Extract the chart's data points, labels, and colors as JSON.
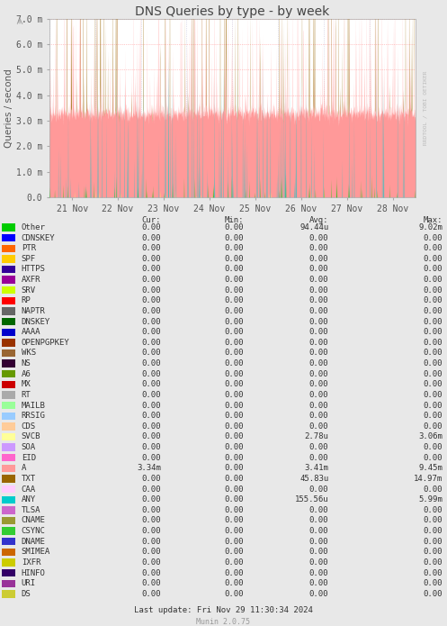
{
  "title": "DNS Queries by type - by week",
  "ylabel": "Queries / second",
  "bg_color": "#e8e8e8",
  "plot_bg_color": "#ffffff",
  "ytick_labels": [
    "0.0",
    "1.0 m",
    "2.0 m",
    "3.0 m",
    "4.0 m",
    "5.0 m",
    "6.0 m",
    "7.0 m"
  ],
  "ytick_vals_M": [
    0.0,
    1.0,
    2.0,
    3.0,
    4.0,
    5.0,
    6.0,
    7.0
  ],
  "ylim_M": 7.0,
  "xtick_labels": [
    "21 Nov",
    "22 Nov",
    "23 Nov",
    "24 Nov",
    "25 Nov",
    "26 Nov",
    "27 Nov",
    "28 Nov"
  ],
  "watermark": "RRDTOOL / TOBI OETIKER",
  "footer": "Last update: Fri Nov 29 11:30:34 2024",
  "munin_version": "Munin 2.0.75",
  "legend": [
    {
      "label": "Other",
      "color": "#00cc00",
      "cur": "0.00",
      "min": "0.00",
      "avg": "94.44u",
      "max": "9.02m"
    },
    {
      "label": "CDNSKEY",
      "color": "#0000ff",
      "cur": "0.00",
      "min": "0.00",
      "avg": "0.00",
      "max": "0.00"
    },
    {
      "label": "PTR",
      "color": "#ff6600",
      "cur": "0.00",
      "min": "0.00",
      "avg": "0.00",
      "max": "0.00"
    },
    {
      "label": "SPF",
      "color": "#ffcc00",
      "cur": "0.00",
      "min": "0.00",
      "avg": "0.00",
      "max": "0.00"
    },
    {
      "label": "HTTPS",
      "color": "#330099",
      "cur": "0.00",
      "min": "0.00",
      "avg": "0.00",
      "max": "0.00"
    },
    {
      "label": "AXFR",
      "color": "#990099",
      "cur": "0.00",
      "min": "0.00",
      "avg": "0.00",
      "max": "0.00"
    },
    {
      "label": "SRV",
      "color": "#ccff00",
      "cur": "0.00",
      "min": "0.00",
      "avg": "0.00",
      "max": "0.00"
    },
    {
      "label": "RP",
      "color": "#ff0000",
      "cur": "0.00",
      "min": "0.00",
      "avg": "0.00",
      "max": "0.00"
    },
    {
      "label": "NAPTR",
      "color": "#666666",
      "cur": "0.00",
      "min": "0.00",
      "avg": "0.00",
      "max": "0.00"
    },
    {
      "label": "DNSKEY",
      "color": "#006600",
      "cur": "0.00",
      "min": "0.00",
      "avg": "0.00",
      "max": "0.00"
    },
    {
      "label": "AAAA",
      "color": "#0000cc",
      "cur": "0.00",
      "min": "0.00",
      "avg": "0.00",
      "max": "0.00"
    },
    {
      "label": "OPENPGPKEY",
      "color": "#993300",
      "cur": "0.00",
      "min": "0.00",
      "avg": "0.00",
      "max": "0.00"
    },
    {
      "label": "WKS",
      "color": "#996633",
      "cur": "0.00",
      "min": "0.00",
      "avg": "0.00",
      "max": "0.00"
    },
    {
      "label": "NS",
      "color": "#330033",
      "cur": "0.00",
      "min": "0.00",
      "avg": "0.00",
      "max": "0.00"
    },
    {
      "label": "A6",
      "color": "#669900",
      "cur": "0.00",
      "min": "0.00",
      "avg": "0.00",
      "max": "0.00"
    },
    {
      "label": "MX",
      "color": "#cc0000",
      "cur": "0.00",
      "min": "0.00",
      "avg": "0.00",
      "max": "0.00"
    },
    {
      "label": "RT",
      "color": "#aaaaaa",
      "cur": "0.00",
      "min": "0.00",
      "avg": "0.00",
      "max": "0.00"
    },
    {
      "label": "MAILB",
      "color": "#99ff99",
      "cur": "0.00",
      "min": "0.00",
      "avg": "0.00",
      "max": "0.00"
    },
    {
      "label": "RRSIG",
      "color": "#99ccff",
      "cur": "0.00",
      "min": "0.00",
      "avg": "0.00",
      "max": "0.00"
    },
    {
      "label": "CDS",
      "color": "#ffcc99",
      "cur": "0.00",
      "min": "0.00",
      "avg": "0.00",
      "max": "0.00"
    },
    {
      "label": "SVCB",
      "color": "#ffff99",
      "cur": "0.00",
      "min": "0.00",
      "avg": "2.78u",
      "max": "3.06m"
    },
    {
      "label": "SOA",
      "color": "#cc99ff",
      "cur": "0.00",
      "min": "0.00",
      "avg": "0.00",
      "max": "0.00"
    },
    {
      "label": "EID",
      "color": "#ff66cc",
      "cur": "0.00",
      "min": "0.00",
      "avg": "0.00",
      "max": "0.00"
    },
    {
      "label": "A",
      "color": "#ff9999",
      "cur": "3.34m",
      "min": "0.00",
      "avg": "3.41m",
      "max": "9.45m"
    },
    {
      "label": "TXT",
      "color": "#996600",
      "cur": "0.00",
      "min": "0.00",
      "avg": "45.83u",
      "max": "14.97m"
    },
    {
      "label": "CAA",
      "color": "#ffccff",
      "cur": "0.00",
      "min": "0.00",
      "avg": "0.00",
      "max": "0.00"
    },
    {
      "label": "ANY",
      "color": "#00cccc",
      "cur": "0.00",
      "min": "0.00",
      "avg": "155.56u",
      "max": "5.99m"
    },
    {
      "label": "TLSA",
      "color": "#cc66cc",
      "cur": "0.00",
      "min": "0.00",
      "avg": "0.00",
      "max": "0.00"
    },
    {
      "label": "CNAME",
      "color": "#999933",
      "cur": "0.00",
      "min": "0.00",
      "avg": "0.00",
      "max": "0.00"
    },
    {
      "label": "CSYNC",
      "color": "#33cc33",
      "cur": "0.00",
      "min": "0.00",
      "avg": "0.00",
      "max": "0.00"
    },
    {
      "label": "DNAME",
      "color": "#3333cc",
      "cur": "0.00",
      "min": "0.00",
      "avg": "0.00",
      "max": "0.00"
    },
    {
      "label": "SMIMEA",
      "color": "#cc6600",
      "cur": "0.00",
      "min": "0.00",
      "avg": "0.00",
      "max": "0.00"
    },
    {
      "label": "IXFR",
      "color": "#cccc00",
      "cur": "0.00",
      "min": "0.00",
      "avg": "0.00",
      "max": "0.00"
    },
    {
      "label": "HINFO",
      "color": "#330066",
      "cur": "0.00",
      "min": "0.00",
      "avg": "0.00",
      "max": "0.00"
    },
    {
      "label": "URI",
      "color": "#993399",
      "cur": "0.00",
      "min": "0.00",
      "avg": "0.00",
      "max": "0.00"
    },
    {
      "label": "DS",
      "color": "#cccc33",
      "cur": "0.00",
      "min": "0.00",
      "avg": "0.00",
      "max": "0.00"
    }
  ]
}
